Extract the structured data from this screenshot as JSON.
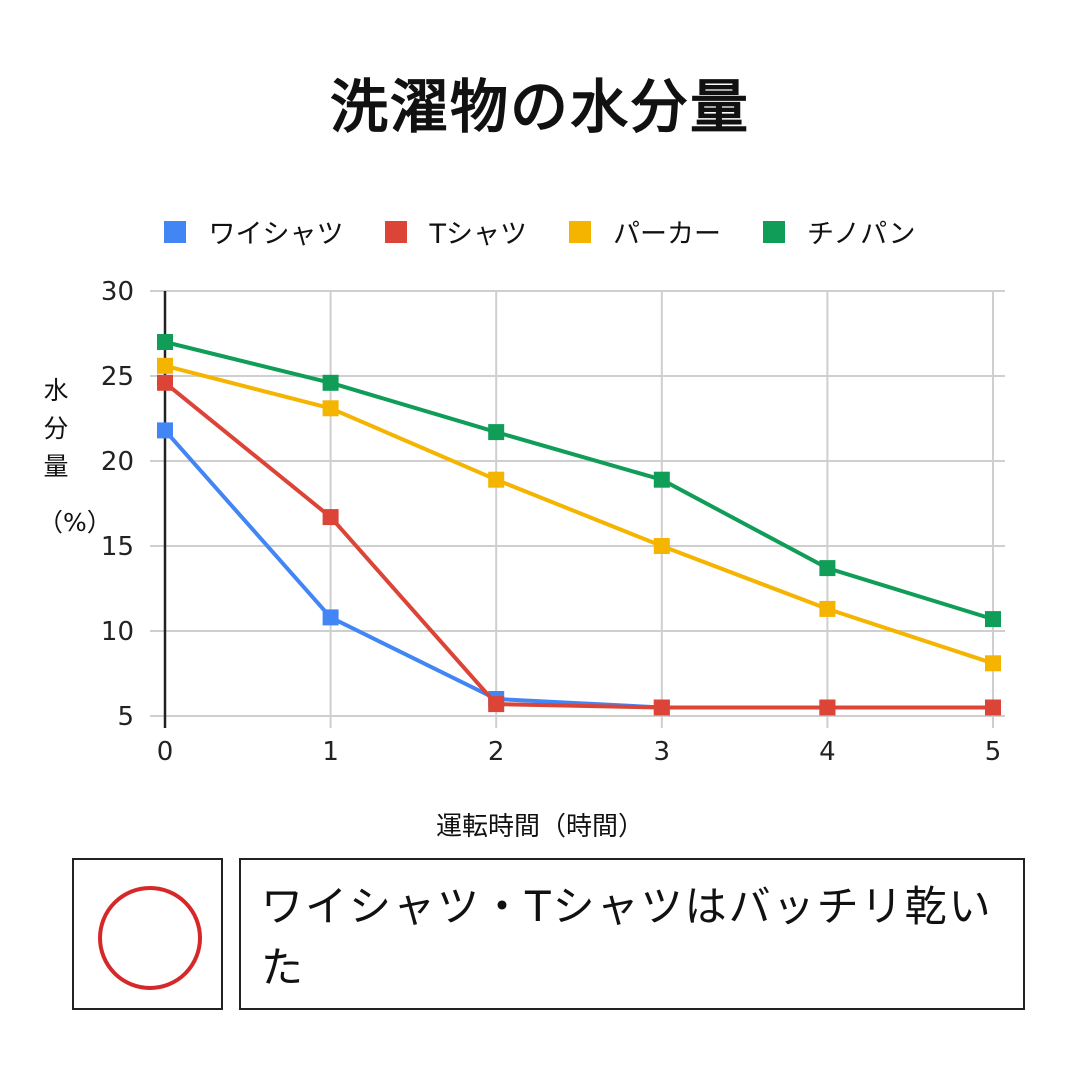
{
  "chart_data": {
    "type": "line",
    "title": "洗濯物の水分量",
    "xlabel": "運転時間（時間）",
    "ylabel_chars": [
      "水",
      "分",
      "量",
      "（%）"
    ],
    "x": [
      0,
      1,
      2,
      3,
      4,
      5
    ],
    "xticks": [
      "0",
      "1",
      "2",
      "3",
      "4",
      "5"
    ],
    "yticks": [
      "5",
      "10",
      "15",
      "20",
      "25",
      "30"
    ],
    "ylim": [
      5,
      30
    ],
    "grid": true,
    "legend_position": "top",
    "series": [
      {
        "name": "ワイシャツ",
        "color": "#4285f4",
        "values": [
          21.8,
          10.8,
          6.0,
          5.5,
          5.5,
          5.5
        ]
      },
      {
        "name": "Tシャツ",
        "color": "#db4437",
        "values": [
          24.6,
          16.7,
          5.7,
          5.5,
          5.5,
          5.5
        ]
      },
      {
        "name": "パーカー",
        "color": "#f4b400",
        "values": [
          25.6,
          23.1,
          18.9,
          15.0,
          11.3,
          8.1
        ]
      },
      {
        "name": "チノパン",
        "color": "#0f9d58",
        "values": [
          27.0,
          24.6,
          21.7,
          18.9,
          13.7,
          10.7
        ]
      }
    ]
  },
  "result": {
    "mark_color": "#d62828",
    "text": "ワイシャツ・Tシャツはバッチリ乾いた"
  }
}
